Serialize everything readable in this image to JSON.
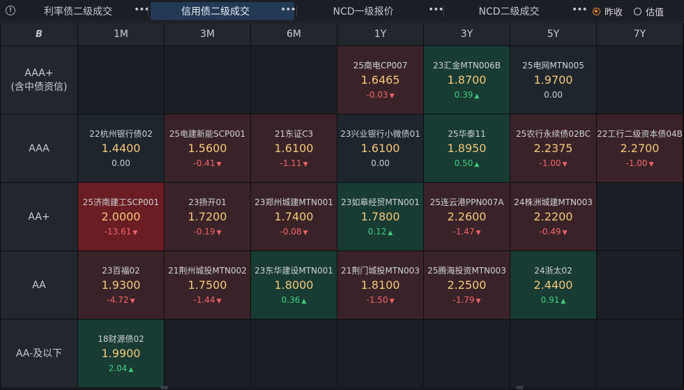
{
  "tabs": [
    {
      "label": "利率债二级成交",
      "active": false
    },
    {
      "label": "信用债二级成交",
      "active": true
    },
    {
      "label": "NCD一级报价",
      "active": false
    },
    {
      "label": "NCD二级成交",
      "active": false
    }
  ],
  "tab_more_glyph": "•••",
  "info_glyph": "!",
  "price_mode": {
    "options": [
      "昨收",
      "估值"
    ],
    "selected": "昨收"
  },
  "corner_logo": "B",
  "columns": [
    "1M",
    "3M",
    "6M",
    "1Y",
    "3Y",
    "5Y",
    "7Y"
  ],
  "rows": [
    {
      "label": [
        "AAA+",
        "(含中债资信)"
      ],
      "cells": [
        null,
        null,
        null,
        {
          "name": "25南电CP007",
          "yield": "1.6465",
          "change": "-0.03",
          "dir": "down",
          "tone": "red"
        },
        {
          "name": "23汇金MTN006B",
          "yield": "1.8700",
          "change": "0.39",
          "dir": "up",
          "tone": "green"
        },
        {
          "name": "25电网MTN005",
          "yield": "1.9700",
          "change": "0.00",
          "dir": "flat",
          "tone": "neutral"
        },
        null
      ]
    },
    {
      "label": [
        "AAA"
      ],
      "cells": [
        {
          "name": "22杭州银行债02",
          "yield": "1.4400",
          "change": "0.00",
          "dir": "flat",
          "tone": "neutral"
        },
        {
          "name": "25电建新能SCP001",
          "yield": "1.5600",
          "change": "-0.41",
          "dir": "down",
          "tone": "red"
        },
        {
          "name": "21东证C3",
          "yield": "1.6100",
          "change": "-1.11",
          "dir": "down",
          "tone": "red"
        },
        {
          "name": "23兴业银行小微债01",
          "yield": "1.6100",
          "change": "0.00",
          "dir": "flat",
          "tone": "neutral"
        },
        {
          "name": "25华泰11",
          "yield": "1.8950",
          "change": "0.50",
          "dir": "up",
          "tone": "green"
        },
        {
          "name": "25农行永续债02BC",
          "yield": "2.2375",
          "change": "-1.00",
          "dir": "down",
          "tone": "red"
        },
        {
          "name": "22工行二级资本债04B",
          "yield": "2.2700",
          "change": "-1.00",
          "dir": "down",
          "tone": "red"
        }
      ]
    },
    {
      "label": [
        "AA+"
      ],
      "cells": [
        {
          "name": "25济南建工SCP001",
          "yield": "2.0000",
          "change": "-13.61",
          "dir": "down",
          "tone": "hot"
        },
        {
          "name": "23扬开01",
          "yield": "1.7200",
          "change": "-0.19",
          "dir": "down",
          "tone": "red"
        },
        {
          "name": "23郑州城建MTN001",
          "yield": "1.7400",
          "change": "-0.08",
          "dir": "down",
          "tone": "red"
        },
        {
          "name": "23如皋经贸MTN001",
          "yield": "1.7800",
          "change": "0.12",
          "dir": "up",
          "tone": "green"
        },
        {
          "name": "25连云港PPN007A",
          "yield": "2.2600",
          "change": "-1.47",
          "dir": "down",
          "tone": "red"
        },
        {
          "name": "24株洲城建MTN003",
          "yield": "2.2200",
          "change": "-0.49",
          "dir": "down",
          "tone": "red"
        },
        null
      ]
    },
    {
      "label": [
        "AA"
      ],
      "cells": [
        {
          "name": "23百福02",
          "yield": "1.9300",
          "change": "-4.72",
          "dir": "down",
          "tone": "red"
        },
        {
          "name": "21荆州城投MTN002",
          "yield": "1.7500",
          "change": "-1.44",
          "dir": "down",
          "tone": "red"
        },
        {
          "name": "23东华建设MTN001",
          "yield": "1.8000",
          "change": "0.36",
          "dir": "up",
          "tone": "green"
        },
        {
          "name": "21荆门城投MTN003",
          "yield": "1.8100",
          "change": "-1.50",
          "dir": "down",
          "tone": "red"
        },
        {
          "name": "25腾海投资MTN003",
          "yield": "2.2500",
          "change": "-1.79",
          "dir": "down",
          "tone": "red"
        },
        {
          "name": "24浙太02",
          "yield": "2.4400",
          "change": "0.91",
          "dir": "up",
          "tone": "green"
        },
        null
      ]
    },
    {
      "label": [
        "AA-及以下"
      ],
      "cells": [
        {
          "name": "18财源债02",
          "yield": "1.9900",
          "change": "2.04",
          "dir": "up",
          "tone": "green"
        },
        null,
        null,
        null,
        null,
        null,
        null
      ]
    }
  ]
}
